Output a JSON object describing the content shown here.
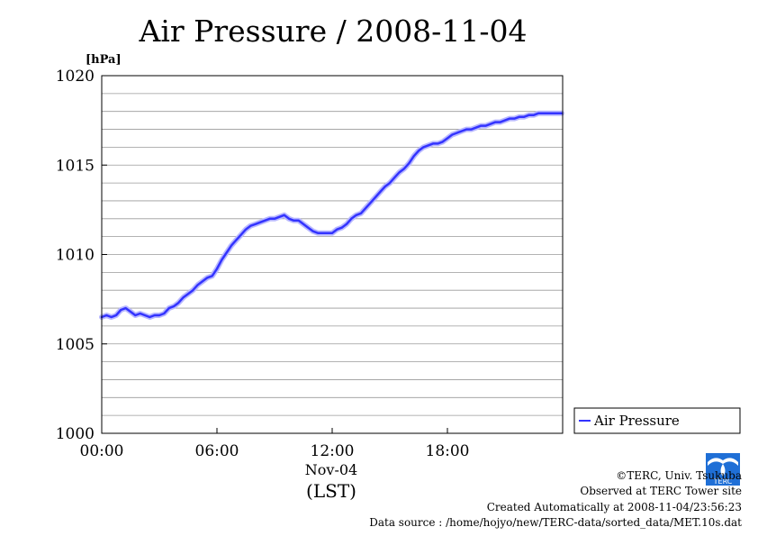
{
  "chart_data": {
    "type": "line",
    "title": "Air Pressure / 2008-11-04",
    "unit_label": "[hPa]",
    "xlabel_date": "Nov-04",
    "xlabel": "(LST)",
    "x_ticks": [
      "00:00",
      "06:00",
      "12:00",
      "18:00"
    ],
    "y_ticks": [
      "1000",
      "1005",
      "1010",
      "1015",
      "1020"
    ],
    "ylim": [
      1000,
      1020
    ],
    "xlim_hours": [
      0,
      24
    ],
    "grid": "horizontal",
    "legend_position": "right",
    "series": [
      {
        "name": "Air Pressure",
        "color": "#3333ff",
        "x_hours": [
          0,
          0.25,
          0.5,
          0.75,
          1.0,
          1.25,
          1.5,
          1.75,
          2.0,
          2.25,
          2.5,
          2.75,
          3.0,
          3.25,
          3.5,
          3.75,
          4.0,
          4.25,
          4.5,
          4.75,
          5.0,
          5.25,
          5.5,
          5.75,
          6.0,
          6.25,
          6.5,
          6.75,
          7.0,
          7.25,
          7.5,
          7.75,
          8.0,
          8.25,
          8.5,
          8.75,
          9.0,
          9.25,
          9.5,
          9.75,
          10.0,
          10.25,
          10.5,
          10.75,
          11.0,
          11.25,
          11.5,
          11.75,
          12.0,
          12.25,
          12.5,
          12.75,
          13.0,
          13.25,
          13.5,
          13.75,
          14.0,
          14.25,
          14.5,
          14.75,
          15.0,
          15.25,
          15.5,
          15.75,
          16.0,
          16.25,
          16.5,
          16.75,
          17.0,
          17.25,
          17.5,
          17.75,
          18.0,
          18.25,
          18.5,
          18.75,
          19.0,
          19.25,
          19.5,
          19.75,
          20.0,
          20.25,
          20.5,
          20.75,
          21.0,
          21.25,
          21.5,
          21.75,
          22.0,
          22.25,
          22.5,
          22.75,
          23.0,
          23.25,
          23.5,
          23.75,
          23.95
        ],
        "values": [
          1006.5,
          1006.6,
          1006.5,
          1006.6,
          1006.9,
          1007.0,
          1006.8,
          1006.6,
          1006.7,
          1006.6,
          1006.5,
          1006.6,
          1006.6,
          1006.7,
          1007.0,
          1007.1,
          1007.3,
          1007.6,
          1007.8,
          1008.0,
          1008.3,
          1008.5,
          1008.7,
          1008.8,
          1009.2,
          1009.7,
          1010.1,
          1010.5,
          1010.8,
          1011.1,
          1011.4,
          1011.6,
          1011.7,
          1011.8,
          1011.9,
          1012.0,
          1012.0,
          1012.1,
          1012.2,
          1012.0,
          1011.9,
          1011.9,
          1011.7,
          1011.5,
          1011.3,
          1011.2,
          1011.2,
          1011.2,
          1011.2,
          1011.4,
          1011.5,
          1011.7,
          1012.0,
          1012.2,
          1012.3,
          1012.6,
          1012.9,
          1013.2,
          1013.5,
          1013.8,
          1014.0,
          1014.3,
          1014.6,
          1014.8,
          1015.1,
          1015.5,
          1015.8,
          1016.0,
          1016.1,
          1016.2,
          1016.2,
          1016.3,
          1016.5,
          1016.7,
          1016.8,
          1016.9,
          1017.0,
          1017.0,
          1017.1,
          1017.2,
          1017.2,
          1017.3,
          1017.4,
          1017.4,
          1017.5,
          1017.6,
          1017.6,
          1017.7,
          1017.7,
          1017.8,
          1017.8,
          1017.9,
          1017.9,
          1017.9,
          1017.9,
          1017.9,
          1017.9
        ]
      }
    ]
  },
  "credits": {
    "copyright": "©TERC, Univ. Tsukuba",
    "observed": "Observed at TERC Tower site",
    "created": "Created Automatically at 2008-11-04/23:56:23",
    "source": "Data source : /home/hojyo/new/TERC-data/sorted_data/MET.10s.dat",
    "logo_text": "TERC"
  }
}
